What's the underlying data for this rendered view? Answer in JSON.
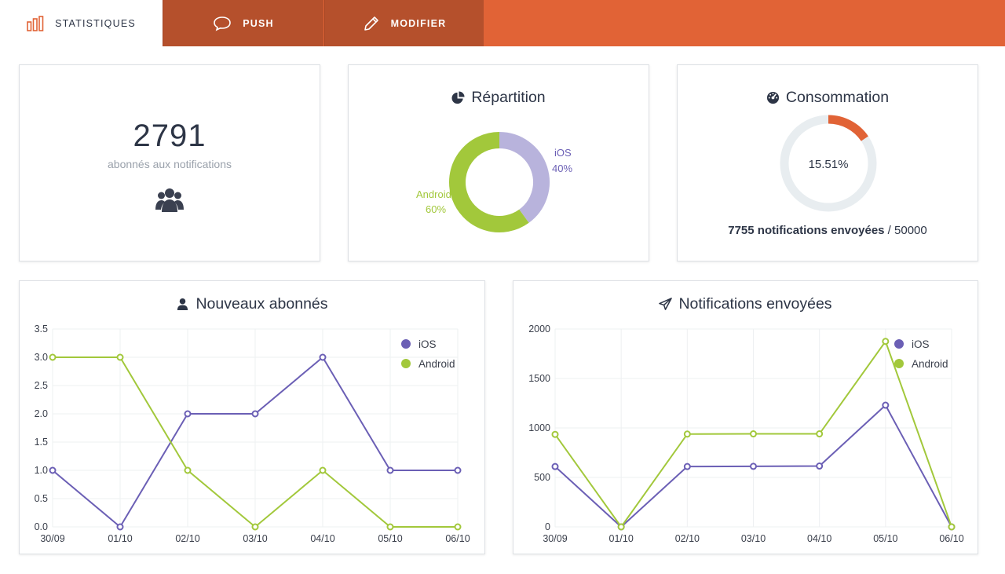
{
  "tabs": [
    {
      "label": "STATISTIQUES",
      "icon": "bar-chart-icon",
      "active": true
    },
    {
      "label": "PUSH",
      "icon": "speech-bubble-icon",
      "active": false
    },
    {
      "label": "MODIFIER",
      "icon": "pencil-icon",
      "active": false
    }
  ],
  "subscribers": {
    "count": "2791",
    "caption": "abonnés aux notifications",
    "icon": "users-icon"
  },
  "repartition": {
    "title": "Répartition",
    "icon": "pie-chart-icon",
    "ios_label": "iOS",
    "ios_pct": "40%",
    "android_label": "Android",
    "android_pct": "60%"
  },
  "consumption": {
    "title": "Consommation",
    "icon": "gauge-icon",
    "percent_label": "15.51%",
    "sent_text": "7755 notifications envoyées",
    "separator": "/",
    "quota": "50000"
  },
  "new_subscribers": {
    "title": "Nouveaux abonnés",
    "icon": "user-icon"
  },
  "sent_notifications": {
    "title": "Notifications envoyées",
    "icon": "paper-plane-icon"
  },
  "colors": {
    "accent": "#e16336",
    "tab_dark": "#b5502c",
    "ios": "#6b5fb5",
    "ios_light": "#b8b3dc",
    "android": "#a2c83b",
    "track": "#e8edf0",
    "gauge": "#e16336"
  },
  "chart_data": [
    {
      "type": "pie",
      "title": "Répartition",
      "categories": [
        "iOS",
        "Android"
      ],
      "values": [
        40,
        60
      ]
    },
    {
      "type": "pie",
      "title": "Consommation",
      "categories": [
        "used"
      ],
      "values": [
        15.51
      ],
      "center_label": "15.51%"
    },
    {
      "type": "line",
      "title": "Nouveaux abonnés",
      "x": [
        "30/09",
        "01/10",
        "02/10",
        "03/10",
        "04/10",
        "05/10",
        "06/10"
      ],
      "series": [
        {
          "name": "iOS",
          "values": [
            1,
            0,
            2,
            2,
            3,
            1,
            1
          ]
        },
        {
          "name": "Android",
          "values": [
            3,
            3,
            1,
            0,
            1,
            0,
            0
          ]
        }
      ],
      "ylim": [
        0,
        3.5
      ],
      "yticks": [
        "0.0",
        "0.5",
        "1.0",
        "1.5",
        "2.0",
        "2.5",
        "3.0",
        "3.5"
      ],
      "grid": true,
      "legend": "top-right"
    },
    {
      "type": "line",
      "title": "Notifications envoyées",
      "x": [
        "30/09",
        "01/10",
        "02/10",
        "03/10",
        "04/10",
        "05/10",
        "06/10"
      ],
      "series": [
        {
          "name": "iOS",
          "values": [
            610,
            0,
            610,
            612,
            615,
            1230,
            0
          ]
        },
        {
          "name": "Android",
          "values": [
            935,
            0,
            938,
            940,
            940,
            1875,
            0
          ]
        }
      ],
      "ylim": [
        0,
        2000
      ],
      "yticks": [
        "0",
        "500",
        "1000",
        "1500",
        "2000"
      ],
      "grid": true,
      "legend": "top-right"
    }
  ]
}
